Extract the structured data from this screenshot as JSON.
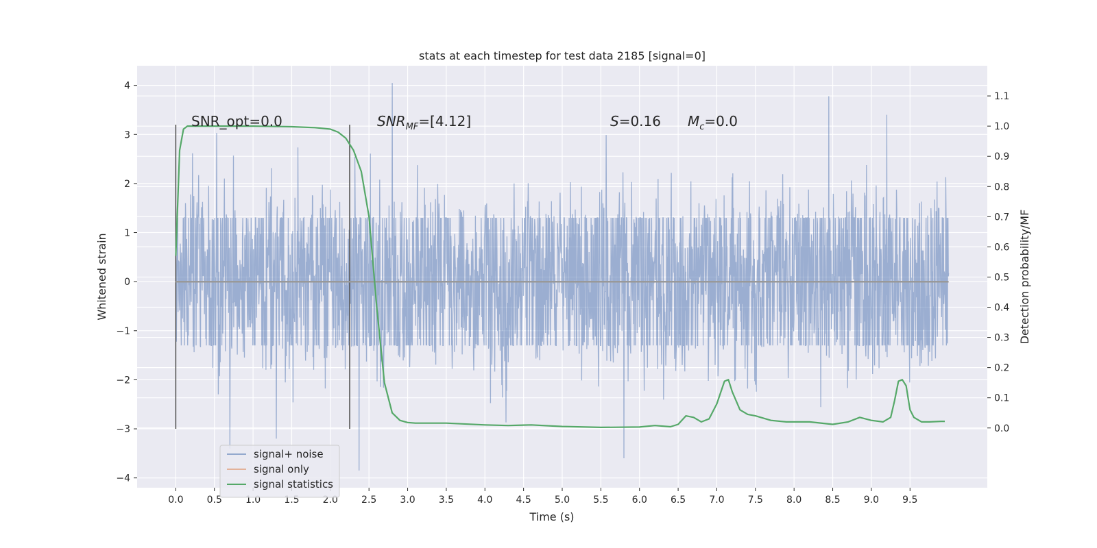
{
  "chart_data": {
    "type": "line",
    "title": "stats at each timestep for test data 2185 [signal=0]",
    "xlabel": "Time (s)",
    "ylabel_left": "Whitened strain",
    "ylabel_right": "Detection probability/MF",
    "xlim": [
      -0.5,
      10.5
    ],
    "ylim_left": [
      -4.2,
      4.4
    ],
    "ylim_right": [
      -0.198,
      1.2
    ],
    "x_ticks": [
      "0.0",
      "0.5",
      "1.0",
      "1.5",
      "2.0",
      "2.5",
      "3.0",
      "3.5",
      "4.0",
      "4.5",
      "5.0",
      "5.5",
      "6.0",
      "6.5",
      "7.0",
      "7.5",
      "8.0",
      "8.5",
      "9.0",
      "9.5"
    ],
    "y_ticks_left": [
      "4",
      "3",
      "2",
      "1",
      "0",
      "−1",
      "−2",
      "−3",
      "−4"
    ],
    "y_ticks_right": [
      "1.1",
      "1.0",
      "0.9",
      "0.8",
      "0.7",
      "0.6",
      "0.5",
      "0.4",
      "0.3",
      "0.2",
      "0.1",
      "0.0"
    ],
    "grid": true,
    "legend_position": "lower-left",
    "annotations": {
      "snr_opt": "SNR_opt=0.0",
      "snr_mf_base": "SNR",
      "snr_mf_sub": "MF",
      "snr_mf_value": "=[4.12]",
      "s_var": "S",
      "s_value": "=0.16",
      "mc_var": "M",
      "mc_sub": "c",
      "mc_value": "=0.0"
    },
    "vertical_markers": [
      {
        "x": 0.0,
        "ylim": [
          -3.0,
          3.2
        ]
      },
      {
        "x": 2.25,
        "ylim": [
          -3.0,
          3.2
        ]
      }
    ],
    "series": [
      {
        "name": "signal+ noise",
        "color": "#4c72b0",
        "axis": "left",
        "x_range": [
          0.0,
          10.0
        ],
        "envelope_typical": 1.3,
        "notable_spikes": [
          {
            "x": 2.8,
            "y": 4.05
          },
          {
            "x": 8.45,
            "y": 3.78
          },
          {
            "x": 9.2,
            "y": 3.4
          },
          {
            "x": 2.37,
            "y": -3.85
          },
          {
            "x": 5.8,
            "y": -3.6
          },
          {
            "x": 0.7,
            "y": -3.4
          },
          {
            "x": 1.3,
            "y": -3.2
          }
        ]
      },
      {
        "name": "signal only",
        "color": "#dd8452",
        "axis": "left",
        "x": [
          0.0,
          10.0
        ],
        "values": [
          0.0,
          0.0
        ]
      },
      {
        "name": "signal statistics",
        "color": "#55a868",
        "axis": "right",
        "x": [
          0.0,
          0.05,
          0.1,
          0.15,
          0.2,
          0.3,
          0.5,
          1.0,
          1.5,
          1.8,
          2.0,
          2.1,
          2.2,
          2.3,
          2.4,
          2.5,
          2.6,
          2.7,
          2.8,
          2.9,
          3.0,
          3.1,
          3.5,
          4.0,
          4.3,
          4.6,
          5.0,
          5.5,
          6.0,
          6.2,
          6.4,
          6.5,
          6.6,
          6.7,
          6.8,
          6.9,
          7.0,
          7.1,
          7.15,
          7.2,
          7.3,
          7.4,
          7.5,
          7.7,
          7.9,
          8.2,
          8.5,
          8.7,
          8.85,
          9.0,
          9.15,
          9.25,
          9.3,
          9.35,
          9.4,
          9.45,
          9.5,
          9.55,
          9.65,
          9.75,
          9.9,
          9.95
        ],
        "values": [
          0.57,
          0.92,
          0.99,
          1.0,
          1.0,
          1.0,
          1.0,
          1.0,
          0.998,
          0.995,
          0.99,
          0.98,
          0.96,
          0.92,
          0.85,
          0.7,
          0.4,
          0.15,
          0.05,
          0.025,
          0.018,
          0.016,
          0.016,
          0.01,
          0.008,
          0.01,
          0.005,
          0.002,
          0.003,
          0.008,
          0.004,
          0.012,
          0.04,
          0.035,
          0.02,
          0.03,
          0.08,
          0.155,
          0.16,
          0.12,
          0.06,
          0.045,
          0.04,
          0.025,
          0.02,
          0.02,
          0.012,
          0.02,
          0.035,
          0.025,
          0.02,
          0.035,
          0.09,
          0.155,
          0.16,
          0.14,
          0.06,
          0.035,
          0.02,
          0.02,
          0.022,
          0.022
        ]
      }
    ]
  }
}
